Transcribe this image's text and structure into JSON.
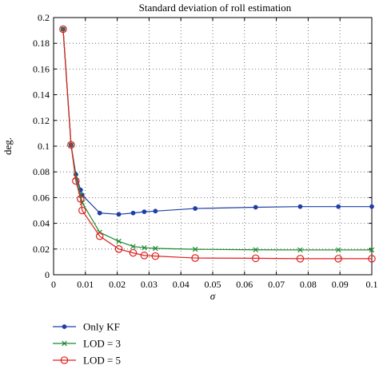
{
  "chart_data": {
    "type": "line",
    "title": "Standard deviation of roll estimation",
    "xlabel": "σ",
    "ylabel": "deg.",
    "xlim": [
      0,
      0.1
    ],
    "ylim": [
      0,
      0.2
    ],
    "x_ticks": [
      "0",
      "0.01",
      "0.02",
      "0.03",
      "0.04",
      "0.05",
      "0.06",
      "0.07",
      "0.08",
      "0.09",
      "0.1"
    ],
    "y_ticks": [
      "0",
      "0.02",
      "0.04",
      "0.06",
      "0.08",
      "0.1",
      "0.12",
      "0.14",
      "0.16",
      "0.18",
      "0.2"
    ],
    "grid": true,
    "legend_position": "below-left",
    "series": [
      {
        "name": "Only KF",
        "color": "#1f3fa6",
        "marker": "dot",
        "x": [
          0.003,
          0.0055,
          0.007,
          0.0085,
          0.009,
          0.0145,
          0.0205,
          0.025,
          0.0285,
          0.032,
          0.0445,
          0.0635,
          0.0775,
          0.0895,
          0.1
        ],
        "y": [
          0.191,
          0.101,
          0.078,
          0.066,
          0.062,
          0.048,
          0.047,
          0.048,
          0.049,
          0.0495,
          0.0515,
          0.0525,
          0.053,
          0.053,
          0.053
        ]
      },
      {
        "name": "LOD = 3",
        "color": "#1a8a2a",
        "marker": "x",
        "x": [
          0.003,
          0.0055,
          0.007,
          0.0085,
          0.009,
          0.0145,
          0.0205,
          0.025,
          0.0285,
          0.032,
          0.0445,
          0.0635,
          0.0775,
          0.0895,
          0.1
        ],
        "y": [
          0.191,
          0.101,
          0.076,
          0.062,
          0.056,
          0.033,
          0.026,
          0.022,
          0.021,
          0.0205,
          0.0198,
          0.0194,
          0.0193,
          0.0193,
          0.0193
        ]
      },
      {
        "name": "LOD = 5",
        "color": "#e02020",
        "marker": "open-circle",
        "x": [
          0.003,
          0.0055,
          0.007,
          0.0085,
          0.009,
          0.0145,
          0.0205,
          0.025,
          0.0285,
          0.032,
          0.0445,
          0.0635,
          0.0775,
          0.0895,
          0.1
        ],
        "y": [
          0.191,
          0.101,
          0.073,
          0.059,
          0.05,
          0.03,
          0.02,
          0.017,
          0.015,
          0.0145,
          0.013,
          0.0128,
          0.0125,
          0.0125,
          0.0125
        ]
      }
    ]
  }
}
